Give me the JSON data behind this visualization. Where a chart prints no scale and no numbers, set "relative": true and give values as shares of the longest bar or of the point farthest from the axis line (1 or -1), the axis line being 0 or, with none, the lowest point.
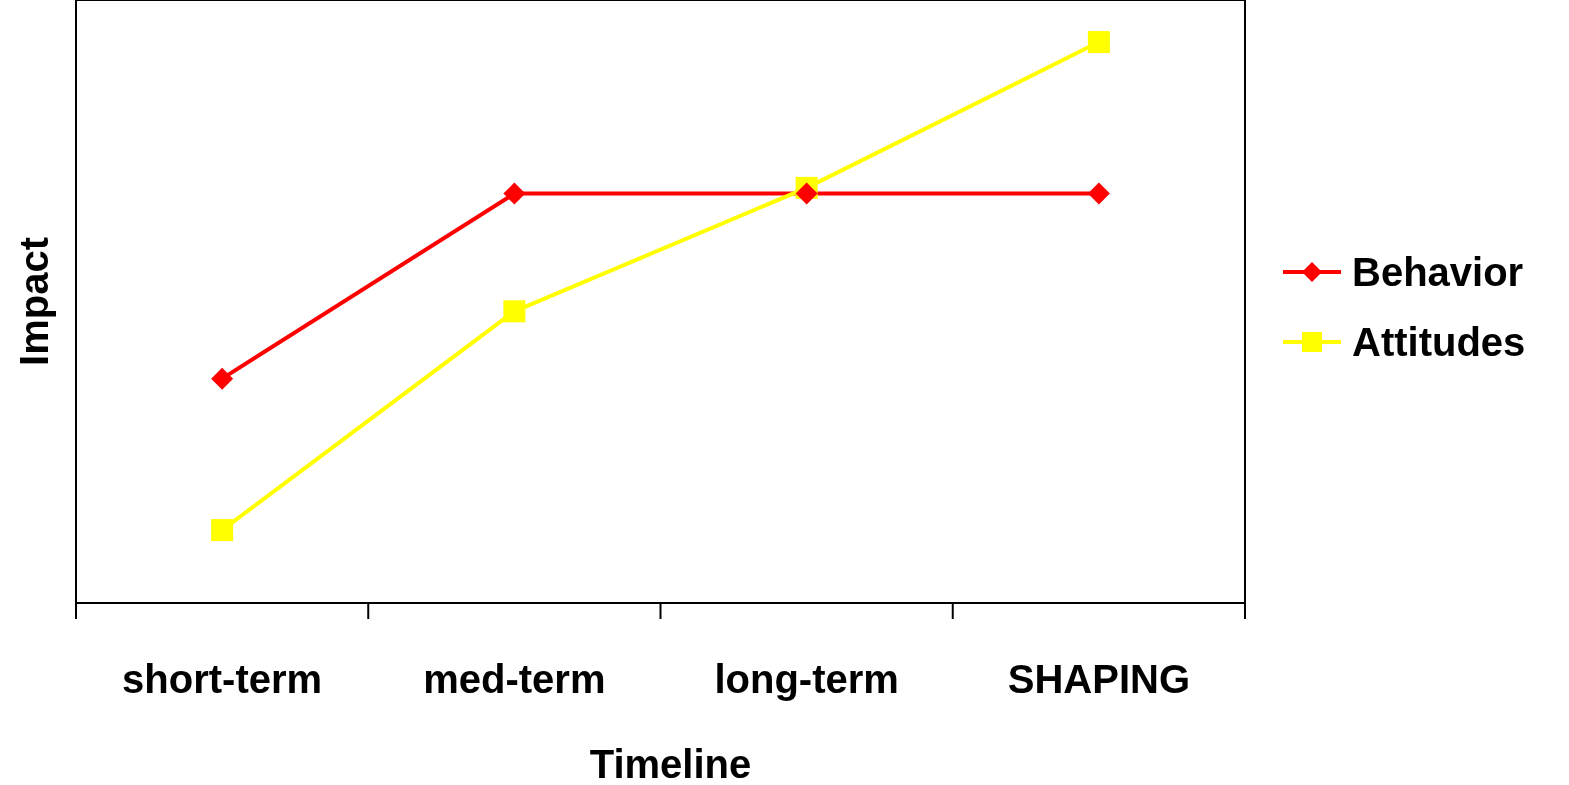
{
  "chart_data": {
    "type": "line",
    "relative": true,
    "xlabel": "Timeline",
    "ylabel": "Impact",
    "categories": [
      "short-term",
      "med-term",
      "long-term",
      "SHAPING"
    ],
    "legend": "right",
    "series": [
      {
        "name": "Behavior",
        "color": "#ff0000",
        "marker": "diamond",
        "values": [
          0.4,
          0.73,
          0.73,
          0.73
        ]
      },
      {
        "name": "Attitudes",
        "color": "#ffff00",
        "marker": "square",
        "values": [
          0.13,
          0.52,
          0.74,
          1
        ]
      }
    ]
  }
}
